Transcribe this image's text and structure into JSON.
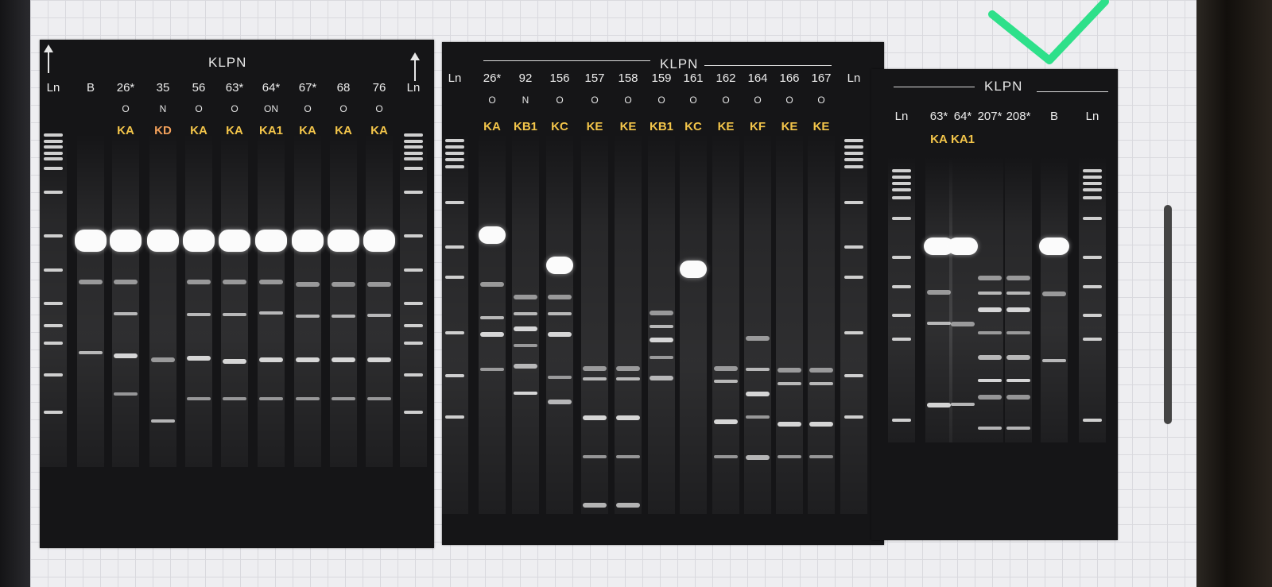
{
  "gels": [
    {
      "id": "gel-1",
      "title": "KLPN",
      "lanes": [
        {
          "label": "Ln",
          "sub": "",
          "type": ""
        },
        {
          "label": "B",
          "sub": "",
          "type": ""
        },
        {
          "label": "26*",
          "sub": "O",
          "type": "KA"
        },
        {
          "label": "35",
          "sub": "N",
          "type": "KD"
        },
        {
          "label": "56",
          "sub": "O",
          "type": "KA"
        },
        {
          "label": "63*",
          "sub": "O",
          "type": "KA"
        },
        {
          "label": "64*",
          "sub": "ON",
          "type": "KA1"
        },
        {
          "label": "67*",
          "sub": "O",
          "type": "KA"
        },
        {
          "label": "68",
          "sub": "O",
          "type": "KA"
        },
        {
          "label": "76",
          "sub": "O",
          "type": "KA"
        },
        {
          "label": "Ln",
          "sub": "",
          "type": ""
        }
      ]
    },
    {
      "id": "gel-2",
      "title": "KLPN",
      "lanes": [
        {
          "label": "Ln",
          "sub": "",
          "type": ""
        },
        {
          "label": "26*",
          "sub": "O",
          "type": "KA"
        },
        {
          "label": "92",
          "sub": "N",
          "type": "KB1"
        },
        {
          "label": "156",
          "sub": "O",
          "type": "KC"
        },
        {
          "label": "157",
          "sub": "O",
          "type": "KE"
        },
        {
          "label": "158",
          "sub": "O",
          "type": "KE"
        },
        {
          "label": "159",
          "sub": "O",
          "type": "KB1"
        },
        {
          "label": "161",
          "sub": "O",
          "type": "KC"
        },
        {
          "label": "162",
          "sub": "O",
          "type": "KE"
        },
        {
          "label": "164",
          "sub": "O",
          "type": "KF"
        },
        {
          "label": "166",
          "sub": "O",
          "type": "KE"
        },
        {
          "label": "167",
          "sub": "O",
          "type": "KE"
        },
        {
          "label": "Ln",
          "sub": "",
          "type": ""
        }
      ]
    },
    {
      "id": "gel-3",
      "title": "KLPN",
      "lanes": [
        {
          "label": "Ln",
          "sub": "",
          "type": ""
        },
        {
          "label": "63*",
          "sub": "",
          "type": "KA"
        },
        {
          "label": "64*",
          "sub": "",
          "type": "KA1"
        },
        {
          "label": "207*",
          "sub": "",
          "type": ""
        },
        {
          "label": "208*",
          "sub": "",
          "type": ""
        },
        {
          "label": "B",
          "sub": "",
          "type": ""
        },
        {
          "label": "Ln",
          "sub": "",
          "type": ""
        }
      ]
    }
  ],
  "colors": {
    "type_label": "#f3c54a",
    "type_label_alt": "#f2a05a",
    "check_mark": "#2ee08a"
  },
  "icons": {
    "annotation": "green-check-mark-icon",
    "arrows": "arrow-up-icon"
  }
}
